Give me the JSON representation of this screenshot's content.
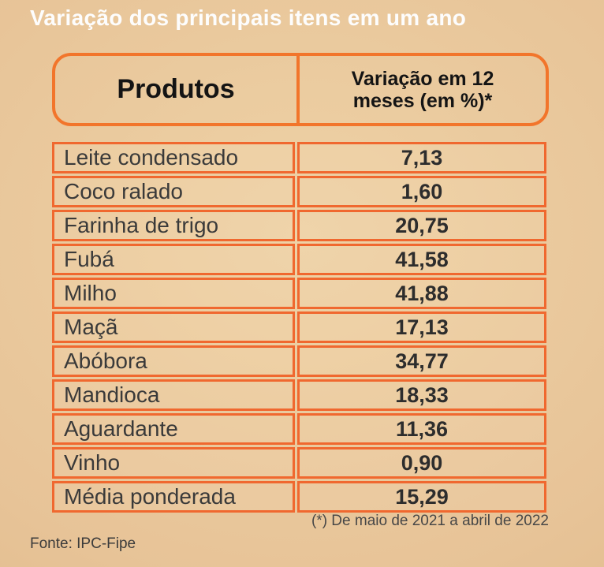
{
  "title": "Variação dos principais itens em um ano",
  "table": {
    "header": {
      "products_label": "Produtos",
      "variation_label": "Variação em 12 meses (em %)*"
    },
    "rows": [
      {
        "product": "Leite condensado",
        "value": "7,13"
      },
      {
        "product": "Coco ralado",
        "value": "1,60"
      },
      {
        "product": "Farinha de trigo",
        "value": "20,75"
      },
      {
        "product": "Fubá",
        "value": "41,58"
      },
      {
        "product": "Milho",
        "value": "41,88"
      },
      {
        "product": "Maçã",
        "value": "17,13"
      },
      {
        "product": "Abóbora",
        "value": "34,77"
      },
      {
        "product": "Mandioca",
        "value": "18,33"
      },
      {
        "product": "Aguardante",
        "value": "11,36"
      },
      {
        "product": "Vinho",
        "value": "0,90"
      },
      {
        "product": "Média ponderada",
        "value": "15,29"
      }
    ]
  },
  "footnote": "(*) De maio de 2021 a abril de 2022",
  "source": "Fonte: IPC-Fipe",
  "colors": {
    "accent_orange": "#f2752b",
    "row_border_orange": "#f0682f",
    "background_tan": "#e7c397",
    "title_white": "#fdfdfd",
    "text_dark": "#2d2d2d"
  },
  "chart_data": {
    "type": "table",
    "title": "Variação dos principais itens em um ano",
    "columns": [
      "Produtos",
      "Variação em 12 meses (em %)*"
    ],
    "categories": [
      "Leite condensado",
      "Coco ralado",
      "Farinha de trigo",
      "Fubá",
      "Milho",
      "Maçã",
      "Abóbora",
      "Mandioca",
      "Aguardante",
      "Vinho",
      "Média ponderada"
    ],
    "values": [
      7.13,
      1.6,
      20.75,
      41.58,
      41.88,
      17.13,
      34.77,
      18.33,
      11.36,
      0.9,
      15.29
    ],
    "footnote": "(*) De maio de 2021 a abril de 2022",
    "source": "Fonte: IPC-Fipe"
  }
}
